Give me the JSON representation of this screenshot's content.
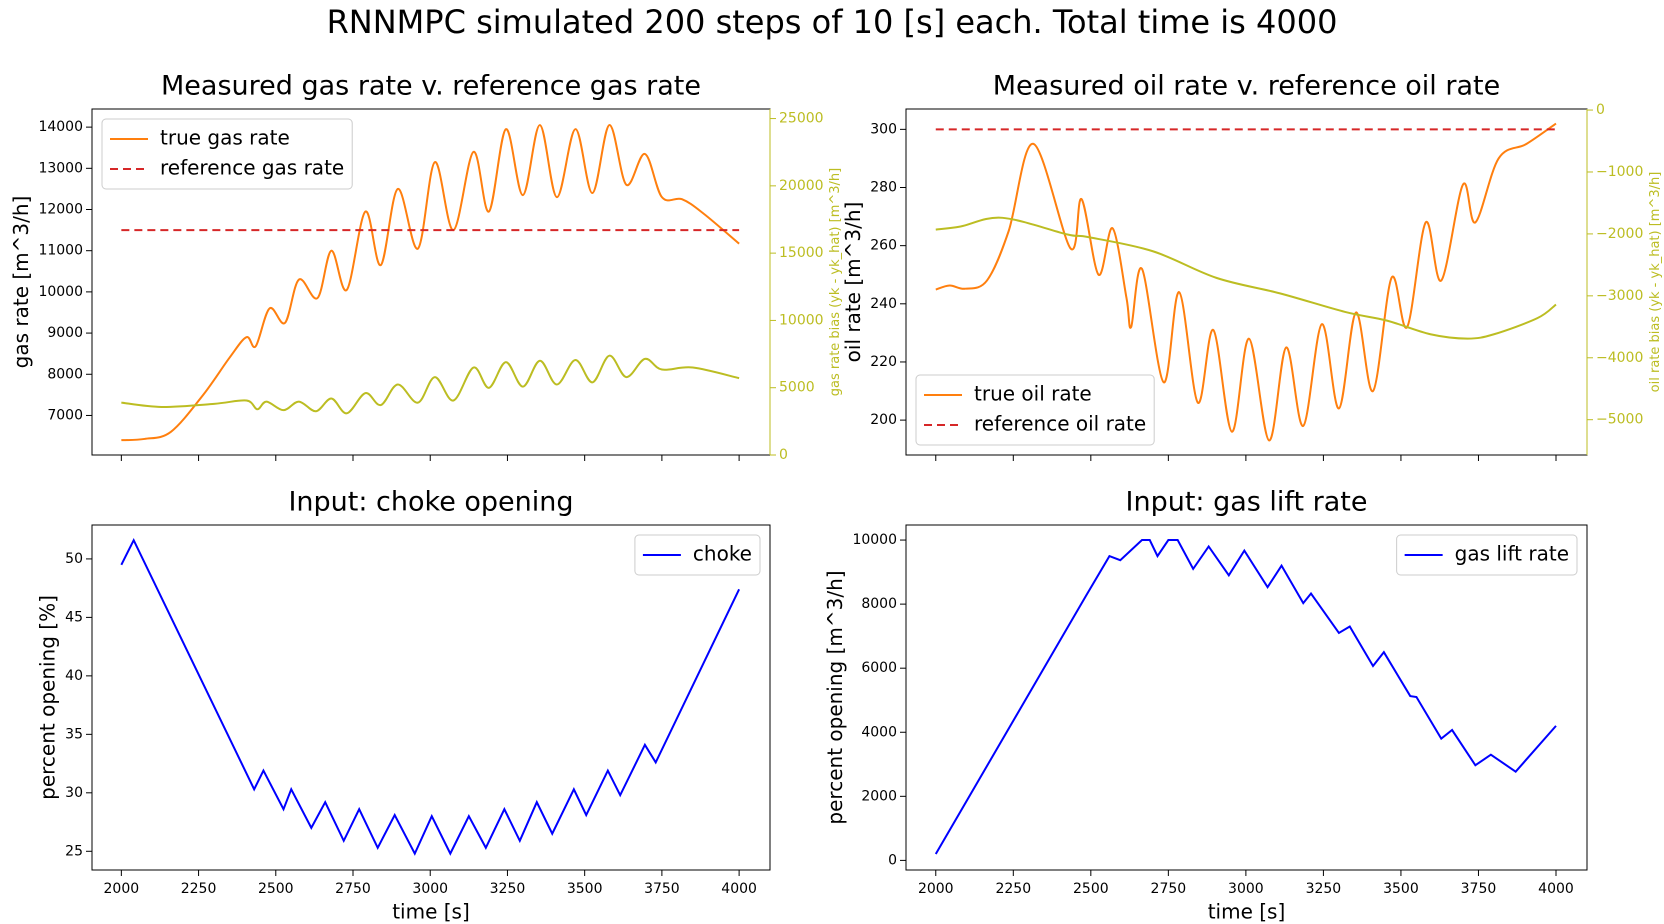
{
  "title": "RNNMPC simulated 200 steps of 10 [s] each. Total time is 4000",
  "chart_data": [
    {
      "type": "line",
      "title": "Measured gas rate v. reference gas rate",
      "ylabel": "gas rate [m^3/h]",
      "y2label": "gas rate bias (yk - yk_hat) [m^3/h]",
      "xlim": [
        1905,
        4100
      ],
      "xticks": [
        2000,
        2250,
        2500,
        2750,
        3000,
        3250,
        3500,
        3750,
        4000
      ],
      "xtick_labels": false,
      "ylim": [
        6040,
        14440
      ],
      "yticks": [
        7000,
        8000,
        9000,
        10000,
        11000,
        12000,
        13000,
        14000
      ],
      "y2lim": [
        0,
        25710
      ],
      "y2ticks": [
        0,
        5000,
        10000,
        15000,
        20000,
        25000
      ],
      "legend": "upper left",
      "series": [
        {
          "name": "true gas rate",
          "color": "#ff7f0e",
          "x": [
            2000,
            2075,
            2160,
            2265,
            2350,
            2405,
            2435,
            2480,
            2530,
            2575,
            2635,
            2680,
            2730,
            2790,
            2840,
            2895,
            2960,
            3015,
            3075,
            3140,
            3190,
            3245,
            3300,
            3355,
            3410,
            3470,
            3525,
            3580,
            3635,
            3695,
            3750,
            3815,
            3885,
            4000
          ],
          "values": [
            6400,
            6430,
            6600,
            7500,
            8400,
            8900,
            8680,
            9600,
            9250,
            10300,
            9850,
            11000,
            10050,
            11950,
            10650,
            12500,
            11050,
            13150,
            11500,
            13400,
            11950,
            13950,
            12350,
            14050,
            12300,
            13950,
            12400,
            14050,
            12600,
            13350,
            12300,
            12250,
            11900,
            11170
          ]
        },
        {
          "name": "reference gas rate",
          "color": "#d62728",
          "linestyle": "dashed",
          "x": [
            2000,
            4000
          ],
          "values": [
            11500,
            11500
          ]
        },
        {
          "color": "#bcbd22",
          "axis": "y2",
          "x": [
            2000,
            2130,
            2300,
            2405,
            2440,
            2470,
            2525,
            2575,
            2630,
            2680,
            2730,
            2790,
            2840,
            2895,
            2960,
            3015,
            3075,
            3140,
            3190,
            3245,
            3300,
            3355,
            3410,
            3470,
            3525,
            3580,
            3635,
            3695,
            3750,
            3850,
            4000
          ],
          "values": [
            3890,
            3570,
            3800,
            4050,
            3400,
            3970,
            3330,
            3970,
            3250,
            4200,
            3100,
            4600,
            3710,
            5240,
            3890,
            5790,
            4050,
            6500,
            4990,
            6900,
            5080,
            7000,
            5240,
            7060,
            5400,
            7380,
            5790,
            7140,
            6350,
            6500,
            5710
          ]
        }
      ]
    },
    {
      "type": "line",
      "title": "Measured oil rate v. reference oil rate",
      "ylabel": "oil rate [m^3/h]",
      "y2label": "oil rate bias (yk - yk_hat) [m^3/h]",
      "xlim": [
        1904,
        4100
      ],
      "xticks": [
        2000,
        2250,
        2500,
        2750,
        3000,
        3250,
        3500,
        3750,
        4000
      ],
      "xtick_labels": false,
      "ylim": [
        188,
        307
      ],
      "yticks": [
        200,
        220,
        240,
        260,
        280,
        300
      ],
      "y2lim": [
        -5570,
        17
      ],
      "y2ticks": [
        {
          "value": -5000,
          "label": "−5000"
        },
        {
          "value": -4000,
          "label": "−4000"
        },
        {
          "value": -3000,
          "label": "−3000"
        },
        {
          "value": -2000,
          "label": "−2000"
        },
        {
          "value": -1000,
          "label": "−1000"
        },
        0
      ],
      "legend": "lower left",
      "series": [
        {
          "name": "true oil rate",
          "color": "#ff7f0e",
          "x": [
            2000,
            2045,
            2095,
            2165,
            2235,
            2315,
            2435,
            2470,
            2525,
            2570,
            2615,
            2630,
            2665,
            2735,
            2785,
            2845,
            2895,
            2955,
            3010,
            3075,
            3130,
            3185,
            3245,
            3300,
            3355,
            3410,
            3470,
            3520,
            3580,
            3630,
            3700,
            3740,
            3815,
            3905,
            4000
          ],
          "values": [
            244.9,
            246.3,
            245.2,
            248,
            265,
            295,
            259,
            276,
            250,
            266,
            242,
            232,
            252,
            213,
            244,
            206,
            231,
            196,
            228,
            193,
            225,
            198,
            233,
            204,
            237,
            210,
            249,
            232,
            268,
            248,
            281,
            268,
            290,
            295,
            302
          ]
        },
        {
          "name": "reference oil rate",
          "color": "#d62728",
          "linestyle": "dashed",
          "x": [
            2000,
            4000
          ],
          "values": [
            300,
            300
          ]
        },
        {
          "color": "#bcbd22",
          "axis": "y2",
          "x": [
            2000,
            2080,
            2215,
            2425,
            2490,
            2700,
            2905,
            3110,
            3320,
            3455,
            3595,
            3715,
            3800,
            3940,
            4000
          ],
          "values": [
            -1930,
            -1880,
            -1740,
            -2010,
            -2050,
            -2280,
            -2710,
            -2960,
            -3260,
            -3400,
            -3620,
            -3690,
            -3620,
            -3360,
            -3140
          ]
        }
      ]
    },
    {
      "type": "line",
      "title": "Input: choke opening",
      "ylabel": "percent opening [%]",
      "xlabel": "time [s]",
      "xlim": [
        1905,
        4100
      ],
      "xticks": [
        2000,
        2250,
        2500,
        2750,
        3000,
        3250,
        3500,
        3750,
        4000
      ],
      "ylim": [
        23.4,
        52.9
      ],
      "yticks": [
        25,
        30,
        35,
        40,
        45,
        50
      ],
      "legend": "upper right",
      "series": [
        {
          "name": "choke",
          "color": "#0000ff",
          "x": [
            2000,
            2040,
            2430,
            2460,
            2525,
            2550,
            2615,
            2660,
            2720,
            2770,
            2830,
            2885,
            2950,
            3005,
            3065,
            3125,
            3180,
            3240,
            3290,
            3345,
            3395,
            3465,
            3505,
            3575,
            3615,
            3695,
            3730,
            4000
          ],
          "values": [
            49.5,
            51.6,
            30.3,
            31.9,
            28.6,
            30.3,
            27.0,
            29.2,
            25.9,
            28.6,
            25.3,
            28.1,
            24.8,
            28.0,
            24.8,
            28.0,
            25.3,
            28.6,
            25.9,
            29.2,
            26.5,
            30.3,
            28.1,
            31.9,
            29.8,
            34.1,
            32.6,
            47.4
          ]
        }
      ]
    },
    {
      "type": "line",
      "title": "Input: gas lift rate",
      "ylabel": "percent opening [m^3/h]",
      "xlabel": "time [s]",
      "xlim": [
        1904,
        4100
      ],
      "xticks": [
        2000,
        2250,
        2500,
        2750,
        3000,
        3250,
        3500,
        3750,
        4000
      ],
      "ylim": [
        -300,
        10470
      ],
      "yticks": [
        0,
        2000,
        4000,
        6000,
        8000,
        10000
      ],
      "legend": "upper right",
      "series": [
        {
          "name": "gas lift rate",
          "color": "#0000ff",
          "x": [
            2000,
            2485,
            2560,
            2595,
            2665,
            2690,
            2715,
            2750,
            2780,
            2830,
            2880,
            2945,
            2995,
            3070,
            3115,
            3185,
            3210,
            3300,
            3335,
            3410,
            3445,
            3530,
            3550,
            3630,
            3665,
            3740,
            3790,
            3870,
            4000
          ],
          "values": [
            200,
            8270,
            9500,
            9370,
            10000,
            10000,
            9500,
            10000,
            10000,
            9100,
            9800,
            8900,
            9670,
            8530,
            9200,
            8030,
            8330,
            7100,
            7300,
            6070,
            6500,
            5130,
            5100,
            3800,
            4070,
            2970,
            3300,
            2770,
            4200
          ]
        }
      ]
    }
  ]
}
